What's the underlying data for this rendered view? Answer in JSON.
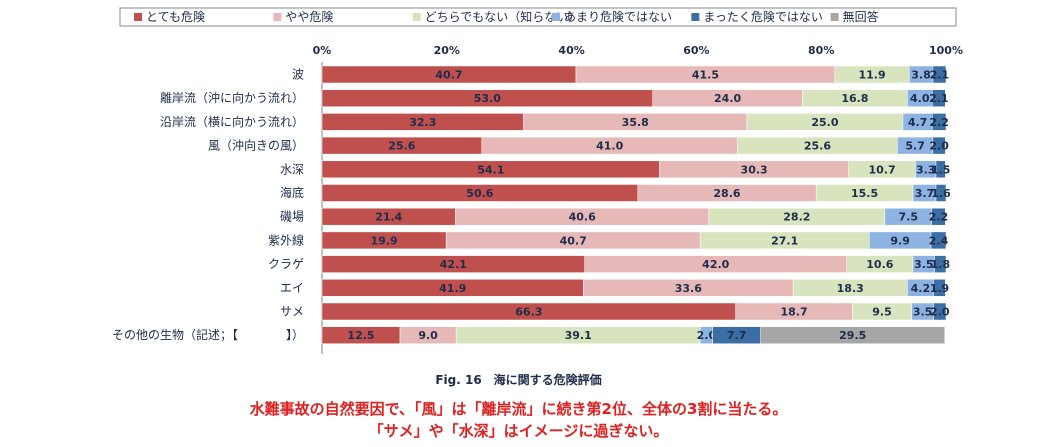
{
  "chart_data": {
    "type": "bar",
    "orientation": "horizontal-stacked-100",
    "categories": [
      "波",
      "離岸流（沖に向かう流れ）",
      "沿岸流（横に向かう流れ）",
      "風（沖向きの風）",
      "水深",
      "海底",
      "磯場",
      "紫外線",
      "クラゲ",
      "エイ",
      "サメ",
      "その他の生物（記述；【　　　　】）"
    ],
    "series": [
      {
        "name": "とても危険",
        "color": "#c0504d",
        "values": [
          40.7,
          53.0,
          32.3,
          25.6,
          54.1,
          50.6,
          21.4,
          19.9,
          42.1,
          41.9,
          66.3,
          12.5
        ]
      },
      {
        "name": "やや危険",
        "color": "#e6b9b8",
        "values": [
          41.5,
          24.0,
          35.8,
          41.0,
          30.3,
          28.6,
          40.6,
          40.7,
          42.0,
          33.6,
          18.7,
          9.0
        ]
      },
      {
        "name": "どちらでもない（知らない）",
        "color": "#d7e4bd",
        "values": [
          11.9,
          16.8,
          25.0,
          25.6,
          10.7,
          15.5,
          28.2,
          27.1,
          10.6,
          18.3,
          9.5,
          39.1
        ]
      },
      {
        "name": "あまり危険ではない",
        "color": "#8db3e2",
        "values": [
          3.8,
          4.0,
          4.7,
          5.7,
          3.3,
          3.7,
          7.5,
          9.9,
          3.5,
          4.2,
          3.5,
          2.0
        ]
      },
      {
        "name": "まったく危険ではない",
        "color": "#3a6ea5",
        "values": [
          2.1,
          2.1,
          2.2,
          2.0,
          1.5,
          1.6,
          2.2,
          2.4,
          1.8,
          1.9,
          2.0,
          7.7
        ]
      },
      {
        "name": "無回答",
        "color": "#a6a6a6",
        "values": [
          0.0,
          0.0,
          0.0,
          0.0,
          0.0,
          0.0,
          0.0,
          0.0,
          0.0,
          0.0,
          0.0,
          29.5
        ]
      }
    ],
    "data_labels": [
      [
        "40.7",
        "41.5",
        "11.9",
        "3.8",
        "2.1",
        ""
      ],
      [
        "53.0",
        "24.0",
        "16.8",
        "4.0",
        "2.1",
        ""
      ],
      [
        "32.3",
        "35.8",
        "25.0",
        "4.7",
        "2.2",
        ""
      ],
      [
        "25.6",
        "41.0",
        "25.6",
        "5.7",
        "2.0",
        ""
      ],
      [
        "54.1",
        "30.3",
        "10.7",
        "3.3",
        "1.5",
        ""
      ],
      [
        "50.6",
        "28.6",
        "15.5",
        "3.7",
        "1.6",
        ""
      ],
      [
        "21.4",
        "40.6",
        "28.2",
        "7.5",
        "2.2",
        ""
      ],
      [
        "19.9",
        "40.7",
        "27.1",
        "9.9",
        "2.4",
        ""
      ],
      [
        "42.1",
        "42.0",
        "10.6",
        "3.5",
        "1.8",
        ""
      ],
      [
        "41.9",
        "33.6",
        "18.3",
        "4.2",
        "1.9",
        ""
      ],
      [
        "66.3",
        "18.7",
        "9.5",
        "3.5",
        "2.0",
        ""
      ],
      [
        "12.5",
        "9.0",
        "39.1",
        "2.0",
        "7.7",
        "29.5"
      ]
    ],
    "x_ticks": [
      "0%",
      "20%",
      "40%",
      "60%",
      "80%",
      "100%"
    ],
    "xlim": [
      0,
      100
    ],
    "legend_position": "top",
    "grid": false
  },
  "caption": "Fig. 16　海に関する危険評価",
  "notes": [
    "水難事故の自然要因で、「風」は「離岸流」に続き第2位、全体の3割に当たる。",
    "「サメ」や「水深」はイメージに過ぎない。"
  ]
}
